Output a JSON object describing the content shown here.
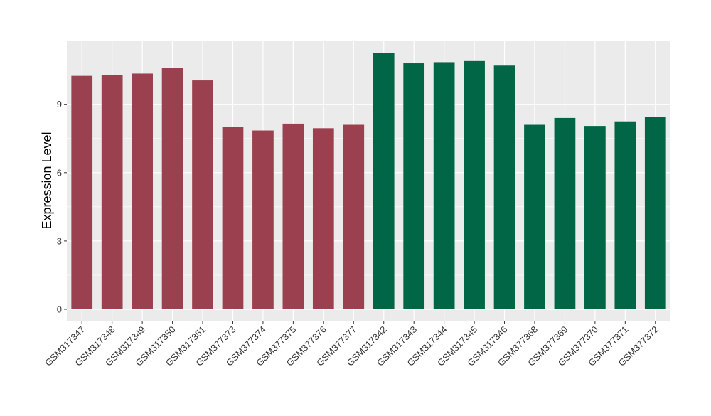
{
  "chart_data": {
    "type": "bar",
    "ylabel": "Expression Level",
    "xlabel": "",
    "ylim": [
      -0.5,
      11.8
    ],
    "yticks": [
      0,
      3,
      6,
      9
    ],
    "categories": [
      "GSM317347",
      "GSM317348",
      "GSM317349",
      "GSM317350",
      "GSM317351",
      "GSM377373",
      "GSM377374",
      "GSM377375",
      "GSM377376",
      "GSM377377",
      "GSM317342",
      "GSM317343",
      "GSM317344",
      "GSM317345",
      "GSM317346",
      "GSM377368",
      "GSM377369",
      "GSM377370",
      "GSM377371",
      "GSM377372"
    ],
    "values": [
      10.25,
      10.3,
      10.35,
      10.6,
      10.05,
      8.0,
      7.85,
      8.15,
      7.95,
      8.1,
      11.25,
      10.8,
      10.85,
      10.9,
      10.7,
      8.1,
      8.4,
      8.05,
      8.25,
      8.45
    ],
    "group_index": [
      0,
      0,
      0,
      0,
      0,
      0,
      0,
      0,
      0,
      0,
      1,
      1,
      1,
      1,
      1,
      1,
      1,
      1,
      1,
      1
    ],
    "colors": [
      "#9a404f",
      "#016646"
    ],
    "panel_background": "#ebebeb",
    "grid_color": "#ffffff",
    "grid": true
  }
}
